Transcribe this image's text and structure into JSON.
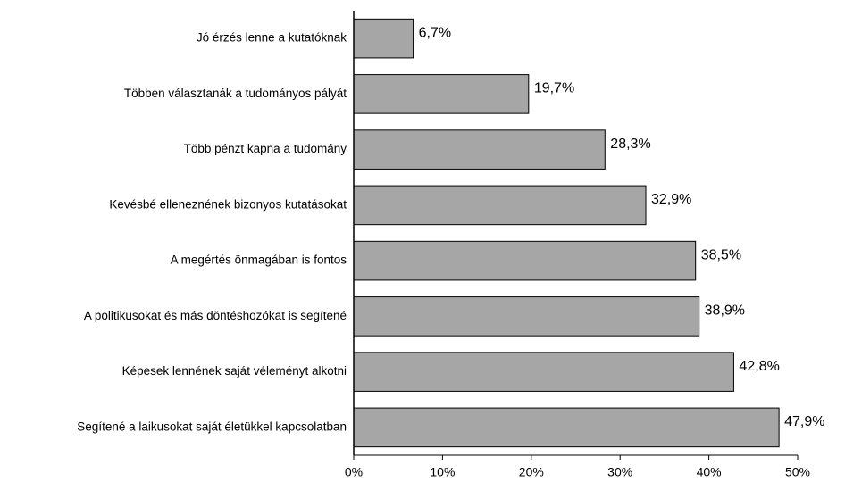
{
  "chart_data": {
    "type": "barh",
    "categories": [
      "Jó érzés lenne a kutatóknak",
      "Többen választanák a tudományos pályát",
      "Több pénzt kapna a tudomány",
      "Kevésbé elleneznének bizonyos kutatásokat",
      "A megértés önmagában is fontos",
      "A politikusokat és más döntéshozókat is segítené",
      "Képesek lennének saját véleményt alkotni",
      "Segítené a laikusokat saját életükkel kapcsolatban"
    ],
    "values": [
      6.7,
      19.7,
      28.3,
      32.9,
      38.5,
      38.9,
      42.8,
      47.9
    ],
    "value_labels": [
      "6,7%",
      "19,7%",
      "28,3%",
      "32,9%",
      "38,5%",
      "38,9%",
      "42,8%",
      "47,9%"
    ],
    "color": "#a6a6a6",
    "xlim": [
      0,
      50
    ],
    "xticks": [
      {
        "value": 0,
        "label": "0%"
      },
      {
        "value": 10,
        "label": "10%"
      },
      {
        "value": 20,
        "label": "20%"
      },
      {
        "value": 30,
        "label": "30%"
      },
      {
        "value": 40,
        "label": "40%"
      },
      {
        "value": 50,
        "label": "50%"
      }
    ]
  }
}
